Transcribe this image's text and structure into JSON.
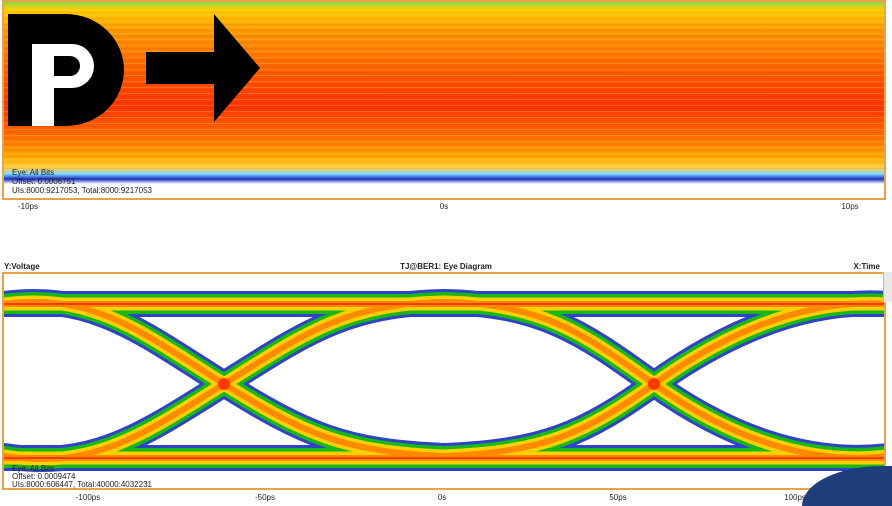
{
  "top_panel": {
    "legend_label": "Eye: All Bits",
    "offset_label": "Offset: 0.0006751",
    "uis_label": "UIs:8000:9217053, Total:8000:9217053",
    "x_ticks": [
      "-10ps",
      "0s",
      "10ps"
    ]
  },
  "bottom_panel": {
    "y_axis_label": "Y:Voltage",
    "title": "TJ@BER1: Eye Diagram",
    "x_axis_label": "X:Time",
    "legend_label": "Eye: All Bits",
    "offset_label": "Offset: 0.0009474",
    "uis_label": "UIs:8000:606447, Total:40000:4032231",
    "x_ticks": [
      "-100ps",
      "-50ps",
      "0s",
      "50ps",
      "100ps"
    ]
  },
  "colors": {
    "plot_border": "#e6a24a",
    "heat_hot": "#ff3a00",
    "heat_warm": "#ff8a00",
    "heat_mid": "#ffd000",
    "heat_cool": "#18b818",
    "heat_cold": "#1a2fbf"
  },
  "icons": {
    "logo": "dp-arrow-logo"
  }
}
